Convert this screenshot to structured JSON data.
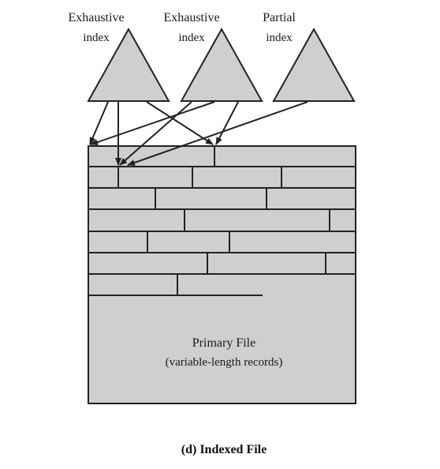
{
  "indexes": [
    {
      "line1": "Exhaustive",
      "line2": "index"
    },
    {
      "line1": "Exhaustive",
      "line2": "index"
    },
    {
      "line1": "Partial",
      "line2": "index"
    }
  ],
  "primary_file": {
    "title": "Primary File",
    "subtitle": "(variable-length records)"
  },
  "caption": "(d) Indexed File",
  "colors": {
    "fill": "#cfcfcf",
    "stroke": "#222222"
  }
}
